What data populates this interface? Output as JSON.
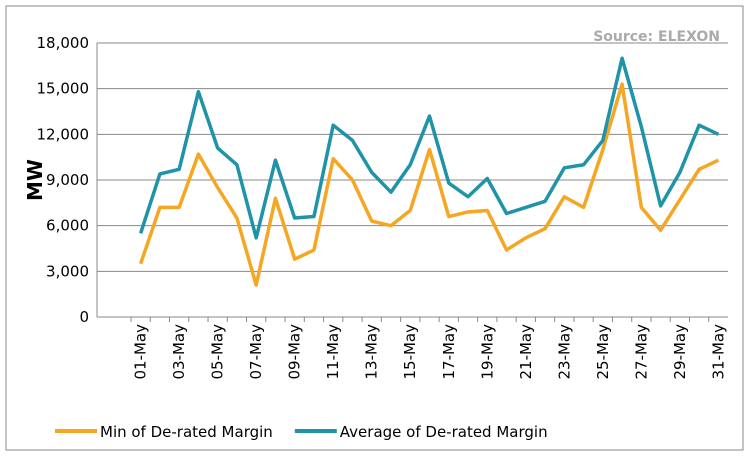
{
  "chart_data": {
    "type": "line",
    "source": "Source: ELEXON",
    "y_label": "MW",
    "categories": [
      "01-May",
      null,
      "03-May",
      null,
      "05-May",
      null,
      "07-May",
      null,
      "09-May",
      null,
      "11-May",
      null,
      "13-May",
      null,
      "15-May",
      null,
      "17-May",
      null,
      "19-May",
      null,
      "21-May",
      null,
      "23-May",
      null,
      "25-May",
      null,
      "27-May",
      null,
      "29-May",
      null,
      "31-May"
    ],
    "series": [
      {
        "name": "Min of De-rated Margin",
        "color": "#f5a623",
        "values": [
          3500,
          7200,
          7200,
          10700,
          8500,
          6500,
          2100,
          7800,
          3800,
          4400,
          10400,
          9000,
          6300,
          6000,
          7000,
          11000,
          6600,
          6900,
          7000,
          4400,
          5200,
          5800,
          7900,
          7200,
          11000,
          15300,
          7200,
          5700,
          7700,
          9700,
          10300
        ]
      },
      {
        "name": "Average of De-rated Margin",
        "color": "#1f93a8",
        "values": [
          5500,
          9400,
          9700,
          14800,
          11100,
          10000,
          5200,
          10300,
          6500,
          6600,
          12600,
          11600,
          9500,
          8200,
          10000,
          13200,
          8800,
          7900,
          9100,
          6800,
          7200,
          7600,
          9800,
          10000,
          11600,
          17000,
          12500,
          7300,
          9500,
          12600,
          12000
        ]
      }
    ],
    "ylim": [
      0,
      18000
    ],
    "yticks": [
      0,
      {
        "value": 3000,
        "label": "3,000"
      },
      {
        "value": 6000,
        "label": "6,000"
      },
      {
        "value": 9000,
        "label": "9,000"
      },
      {
        "value": 12000,
        "label": "12,000"
      },
      {
        "value": 15000,
        "label": "15,000"
      },
      {
        "value": 18000,
        "label": "18,000"
      }
    ],
    "grid": true
  }
}
